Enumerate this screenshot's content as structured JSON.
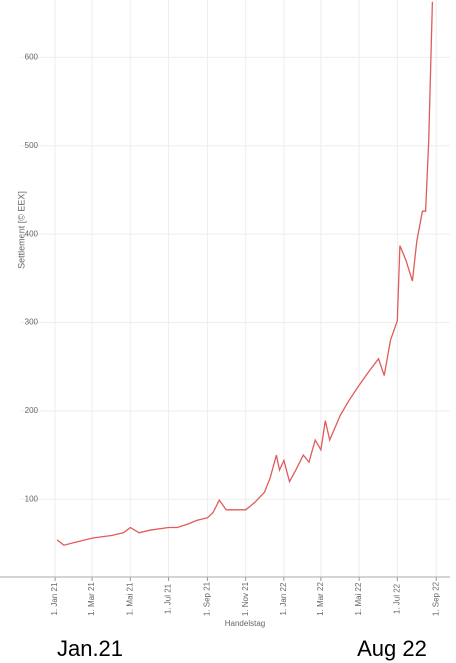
{
  "chart_data": {
    "type": "line",
    "y_label": "Settlement [© EEX]",
    "x_label": "Handelstag",
    "annotations": [
      "Jan.21",
      "Aug 22"
    ],
    "x": [
      "2021-01-04",
      "2021-01-15",
      "2021-02-01",
      "2021-03-01",
      "2021-04-01",
      "2021-04-20",
      "2021-05-01",
      "2021-05-15",
      "2021-06-01",
      "2021-07-01",
      "2021-07-15",
      "2021-08-01",
      "2021-08-15",
      "2021-09-01",
      "2021-09-10",
      "2021-09-20",
      "2021-10-01",
      "2021-10-15",
      "2021-11-01",
      "2021-11-15",
      "2021-12-01",
      "2021-12-10",
      "2021-12-20",
      "2021-12-25",
      "2022-01-01",
      "2022-01-10",
      "2022-01-20",
      "2022-02-01",
      "2022-02-10",
      "2022-02-20",
      "2022-03-01",
      "2022-03-08",
      "2022-03-15",
      "2022-04-01",
      "2022-04-15",
      "2022-05-01",
      "2022-05-15",
      "2022-06-01",
      "2022-06-10",
      "2022-06-20",
      "2022-07-01",
      "2022-07-05",
      "2022-07-15",
      "2022-07-25",
      "2022-08-01",
      "2022-08-10",
      "2022-08-15",
      "2022-08-20",
      "2022-08-26"
    ],
    "series": [
      {
        "name": "Settlement",
        "color": "#e05b5b",
        "values": [
          54,
          48,
          51,
          56,
          59,
          62,
          68,
          62,
          65,
          68,
          68,
          72,
          76,
          79,
          85,
          99,
          88,
          88,
          88,
          96,
          108,
          124,
          150,
          133,
          144,
          120,
          133,
          150,
          142,
          167,
          156,
          189,
          167,
          195,
          212,
          229,
          243,
          259,
          240,
          280,
          302,
          387,
          370,
          347,
          392,
          426,
          426,
          505,
          663
        ]
      }
    ],
    "xlim": [
      "2020-11-06",
      "2022-09-23"
    ],
    "xticks": [
      {
        "value": "2021-01-01",
        "label": "1. Jan 21"
      },
      {
        "value": "2021-03-01",
        "label": "1. Mar 21"
      },
      {
        "value": "2021-05-01",
        "label": "1. Mai 21"
      },
      {
        "value": "2021-07-01",
        "label": "1. Jul 21"
      },
      {
        "value": "2021-09-01",
        "label": "1. Sep 21"
      },
      {
        "value": "2021-11-01",
        "label": "1. Nov 21"
      },
      {
        "value": "2022-01-01",
        "label": "1. Jan 22"
      },
      {
        "value": "2022-03-01",
        "label": "1. Mar 22"
      },
      {
        "value": "2022-05-01",
        "label": "1. Mai 22"
      },
      {
        "value": "2022-07-01",
        "label": "1. Jul 22"
      },
      {
        "value": "2022-09-01",
        "label": "1. Sep 22"
      }
    ],
    "ylim": [
      12,
      665
    ],
    "yticks": [
      100,
      200,
      300,
      400,
      500,
      600
    ],
    "grid": true
  }
}
